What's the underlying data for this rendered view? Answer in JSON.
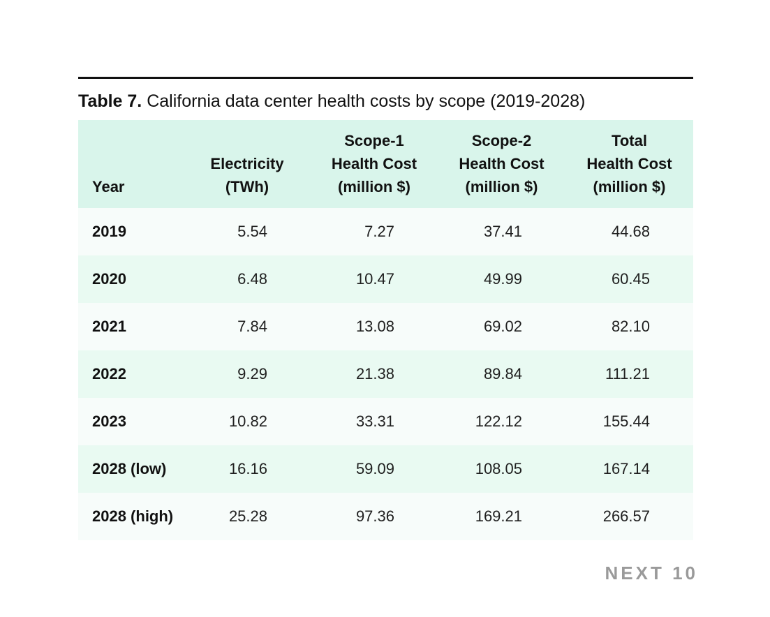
{
  "title": {
    "number": "Table 7.",
    "caption": " California data center health costs by scope (2019-2028)"
  },
  "table": {
    "columns": [
      {
        "key": "year",
        "label_lines": [
          "Year"
        ]
      },
      {
        "key": "electricity",
        "label_lines": [
          "Electricity",
          "(TWh)"
        ]
      },
      {
        "key": "scope1",
        "label_lines": [
          "Scope-1",
          "Health Cost",
          "(million $)"
        ]
      },
      {
        "key": "scope2",
        "label_lines": [
          "Scope-2",
          "Health Cost",
          "(million $)"
        ]
      },
      {
        "key": "total",
        "label_lines": [
          "Total",
          "Health Cost",
          "(million $)"
        ]
      }
    ],
    "rows": [
      {
        "year": "2019",
        "electricity": "5.54",
        "scope1": "7.27",
        "scope2": "37.41",
        "total": "44.68"
      },
      {
        "year": "2020",
        "electricity": "6.48",
        "scope1": "10.47",
        "scope2": "49.99",
        "total": "60.45"
      },
      {
        "year": "2021",
        "electricity": "7.84",
        "scope1": "13.08",
        "scope2": "69.02",
        "total": "82.10"
      },
      {
        "year": "2022",
        "electricity": "9.29",
        "scope1": "21.38",
        "scope2": "89.84",
        "total": "111.21"
      },
      {
        "year": "2023",
        "electricity": "10.82",
        "scope1": "33.31",
        "scope2": "122.12",
        "total": "155.44"
      },
      {
        "year": "2028 (low)",
        "electricity": "16.16",
        "scope1": "59.09",
        "scope2": "108.05",
        "total": "167.14"
      },
      {
        "year": "2028 (high)",
        "electricity": "25.28",
        "scope1": "97.36",
        "scope2": "169.21",
        "total": "266.57"
      }
    ]
  },
  "footer": {
    "brand": "NEXT 10"
  },
  "colors": {
    "header_bg": "#d9f5eb",
    "row_odd_bg": "#f7fcfa",
    "row_even_bg": "#e9faf2",
    "rule": "#111111",
    "text": "#111111",
    "brand_gray": "#9a9a9a",
    "page_bg": "#ffffff"
  }
}
